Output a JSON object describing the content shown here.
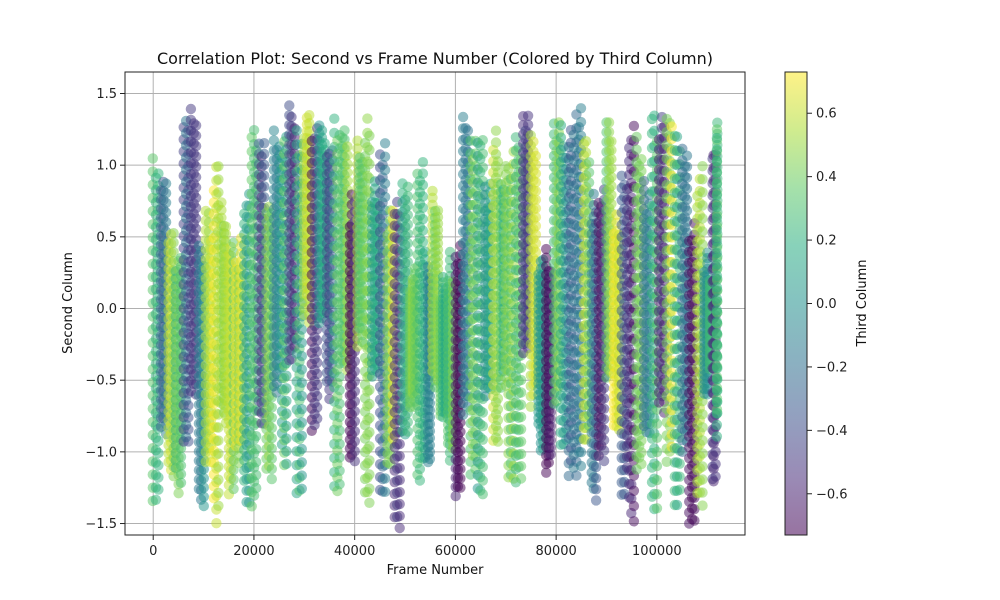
{
  "chart_data": {
    "type": "scatter",
    "title": "Correlation Plot: Second vs Frame Number (Colored by Third Column)",
    "xlabel": "Frame Number",
    "ylabel": "Second Column",
    "colorbar_label": "Third Column",
    "xlim": [
      -5600,
      117500
    ],
    "ylim": [
      -1.58,
      1.65
    ],
    "clim": [
      -0.73,
      0.73
    ],
    "x_ticks": [
      0,
      20000,
      40000,
      60000,
      80000,
      100000
    ],
    "x_tick_labels": [
      "0",
      "20000",
      "40000",
      "60000",
      "80000",
      "100000"
    ],
    "y_ticks": [
      -1.5,
      -1.0,
      -0.5,
      0.0,
      0.5,
      1.0,
      1.5
    ],
    "y_tick_labels": [
      "−1.5",
      "−1.0",
      "−0.5",
      "0.0",
      "0.5",
      "1.0",
      "1.5"
    ],
    "cbar_ticks": [
      -0.6,
      -0.4,
      -0.2,
      0.0,
      0.2,
      0.4,
      0.6
    ],
    "cbar_tick_labels": [
      "−0.6",
      "−0.4",
      "−0.2",
      "0.0",
      "0.2",
      "0.4",
      "0.6"
    ],
    "grid": true,
    "colormap": "viridis",
    "marker_alpha": 0.5,
    "point_stride": 900,
    "x_max_point": 112000,
    "columns": [
      {
        "x": 0,
        "ymin": -1.3,
        "ymax": 1.1,
        "c": 0.2
      },
      {
        "x": 1500,
        "ymin": -0.8,
        "ymax": 1.0,
        "c": -0.2
      },
      {
        "x": 3000,
        "ymin": -1.1,
        "ymax": 0.6,
        "c": 0.5
      },
      {
        "x": 4500,
        "ymin": -1.2,
        "ymax": 0.4,
        "c": 0.3
      },
      {
        "x": 6000,
        "ymin": -0.9,
        "ymax": 1.35,
        "c": -0.3
      },
      {
        "x": 7500,
        "ymin": -0.6,
        "ymax": 1.45,
        "c": -0.5
      },
      {
        "x": 9000,
        "ymin": -1.3,
        "ymax": 0.5,
        "c": -0.1
      },
      {
        "x": 10500,
        "ymin": -1.0,
        "ymax": 0.7,
        "c": 0.6
      },
      {
        "x": 12000,
        "ymin": -1.4,
        "ymax": 1.05,
        "c": 0.68
      },
      {
        "x": 13500,
        "ymin": -0.7,
        "ymax": 0.8,
        "c": 0.55
      },
      {
        "x": 15000,
        "ymin": -1.2,
        "ymax": 0.6,
        "c": 0.45
      },
      {
        "x": 16500,
        "ymin": -1.0,
        "ymax": 0.5,
        "c": 0.62
      },
      {
        "x": 18000,
        "ymin": -1.3,
        "ymax": 0.9,
        "c": 0.1
      },
      {
        "x": 19500,
        "ymin": -1.35,
        "ymax": 1.35,
        "c": 0.35
      },
      {
        "x": 21000,
        "ymin": -0.8,
        "ymax": 1.2,
        "c": -0.45
      },
      {
        "x": 22500,
        "ymin": -1.15,
        "ymax": 0.8,
        "c": 0.5
      },
      {
        "x": 24000,
        "ymin": -0.5,
        "ymax": 1.3,
        "c": -0.15
      },
      {
        "x": 25500,
        "ymin": -1.0,
        "ymax": 1.2,
        "c": 0.25
      },
      {
        "x": 27000,
        "ymin": -0.3,
        "ymax": 1.45,
        "c": -0.55
      },
      {
        "x": 28500,
        "ymin": -1.2,
        "ymax": 1.3,
        "c": 0.15
      },
      {
        "x": 30000,
        "ymin": 0.0,
        "ymax": 1.35,
        "c": 0.65
      },
      {
        "x": 31500,
        "ymin": -0.8,
        "ymax": 1.4,
        "c": -0.6
      },
      {
        "x": 33000,
        "ymin": -0.1,
        "ymax": 1.4,
        "c": 0.05
      },
      {
        "x": 34500,
        "ymin": -0.6,
        "ymax": 1.3,
        "c": -0.35
      },
      {
        "x": 36000,
        "ymin": -1.3,
        "ymax": 1.35,
        "c": 0.3
      },
      {
        "x": 37500,
        "ymin": -0.4,
        "ymax": 1.3,
        "c": 0.42
      },
      {
        "x": 39000,
        "ymin": -1.0,
        "ymax": 0.8,
        "c": -0.65
      },
      {
        "x": 40500,
        "ymin": -0.2,
        "ymax": 1.2,
        "c": 0.48
      },
      {
        "x": 42000,
        "ymin": -1.3,
        "ymax": 1.35,
        "c": 0.4
      },
      {
        "x": 43500,
        "ymin": -0.5,
        "ymax": 0.9,
        "c": 0.2
      },
      {
        "x": 45000,
        "ymin": -1.35,
        "ymax": 1.2,
        "c": -0.25
      },
      {
        "x": 46500,
        "ymin": -1.0,
        "ymax": 0.75,
        "c": 0.58
      },
      {
        "x": 48000,
        "ymin": -1.45,
        "ymax": 0.8,
        "c": -0.4
      },
      {
        "x": 49500,
        "ymin": -0.9,
        "ymax": 1.0,
        "c": 0.1
      },
      {
        "x": 51000,
        "ymin": -0.6,
        "ymax": 0.3,
        "c": 0.52
      },
      {
        "x": 52500,
        "ymin": -1.1,
        "ymax": 1.1,
        "c": 0.38
      },
      {
        "x": 54000,
        "ymin": -1.1,
        "ymax": 0.4,
        "c": 0.0
      },
      {
        "x": 55500,
        "ymin": -0.5,
        "ymax": 0.9,
        "c": 0.44
      },
      {
        "x": 57000,
        "ymin": -0.8,
        "ymax": 0.3,
        "c": 0.27
      },
      {
        "x": 58500,
        "ymin": -1.0,
        "ymax": 0.4,
        "c": 0.35
      },
      {
        "x": 60000,
        "ymin": -1.25,
        "ymax": 0.5,
        "c": -0.7
      },
      {
        "x": 61500,
        "ymin": -0.7,
        "ymax": 1.4,
        "c": -0.2
      },
      {
        "x": 63000,
        "ymin": -1.1,
        "ymax": 1.2,
        "c": 0.42
      },
      {
        "x": 64500,
        "ymin": -1.25,
        "ymax": 1.25,
        "c": 0.18
      },
      {
        "x": 66000,
        "ymin": -0.6,
        "ymax": 0.9,
        "c": 0.05
      },
      {
        "x": 67500,
        "ymin": -1.0,
        "ymax": 1.25,
        "c": 0.55
      },
      {
        "x": 69000,
        "ymin": -0.5,
        "ymax": 1.0,
        "c": 0.3
      },
      {
        "x": 70500,
        "ymin": -1.2,
        "ymax": 1.15,
        "c": 0.46
      },
      {
        "x": 72000,
        "ymin": -1.2,
        "ymax": 1.2,
        "c": 0.22
      },
      {
        "x": 73500,
        "ymin": -0.3,
        "ymax": 1.45,
        "c": -0.45
      },
      {
        "x": 75000,
        "ymin": -0.6,
        "ymax": 1.3,
        "c": 0.6
      },
      {
        "x": 76500,
        "ymin": -0.9,
        "ymax": 0.4,
        "c": -0.05
      },
      {
        "x": 78000,
        "ymin": -1.1,
        "ymax": 0.45,
        "c": -0.72
      },
      {
        "x": 79500,
        "ymin": -0.6,
        "ymax": 1.3,
        "c": 0.4
      },
      {
        "x": 81000,
        "ymin": -1.0,
        "ymax": 1.3,
        "c": 0.12
      },
      {
        "x": 82500,
        "ymin": -1.1,
        "ymax": 1.35,
        "c": -0.3
      },
      {
        "x": 84000,
        "ymin": -1.1,
        "ymax": 1.4,
        "c": -0.1
      },
      {
        "x": 85500,
        "ymin": -0.9,
        "ymax": 1.2,
        "c": 0.5
      },
      {
        "x": 87000,
        "ymin": -1.25,
        "ymax": 0.8,
        "c": -0.2
      },
      {
        "x": 88500,
        "ymin": -1.0,
        "ymax": 0.9,
        "c": -0.6
      },
      {
        "x": 90000,
        "ymin": -0.5,
        "ymax": 1.4,
        "c": 0.35
      },
      {
        "x": 91500,
        "ymin": -0.9,
        "ymax": 0.7,
        "c": 0.62
      },
      {
        "x": 93000,
        "ymin": -1.2,
        "ymax": 1.0,
        "c": -0.35
      },
      {
        "x": 94500,
        "ymin": -1.4,
        "ymax": 1.35,
        "c": -0.66
      },
      {
        "x": 96000,
        "ymin": -1.1,
        "ymax": 1.2,
        "c": 0.45
      },
      {
        "x": 97500,
        "ymin": -0.8,
        "ymax": 0.9,
        "c": -0.15
      },
      {
        "x": 99000,
        "ymin": -1.3,
        "ymax": 1.4,
        "c": 0.3
      },
      {
        "x": 100500,
        "ymin": -0.7,
        "ymax": 1.35,
        "c": -0.5
      },
      {
        "x": 102000,
        "ymin": -1.0,
        "ymax": 1.45,
        "c": 0.58
      },
      {
        "x": 103500,
        "ymin": -1.3,
        "ymax": 1.3,
        "c": 0.2
      },
      {
        "x": 105000,
        "ymin": -0.9,
        "ymax": 1.2,
        "c": -0.25
      },
      {
        "x": 106500,
        "ymin": -1.4,
        "ymax": 0.6,
        "c": -0.7
      },
      {
        "x": 108000,
        "ymin": -1.35,
        "ymax": 1.0,
        "c": 0.5
      },
      {
        "x": 109500,
        "ymin": -0.5,
        "ymax": 0.4,
        "c": 0.1
      },
      {
        "x": 111000,
        "ymin": -1.2,
        "ymax": 1.2,
        "c": -0.55
      },
      {
        "x": 112000,
        "ymin": -0.8,
        "ymax": 1.3,
        "c": 0.3
      }
    ]
  }
}
